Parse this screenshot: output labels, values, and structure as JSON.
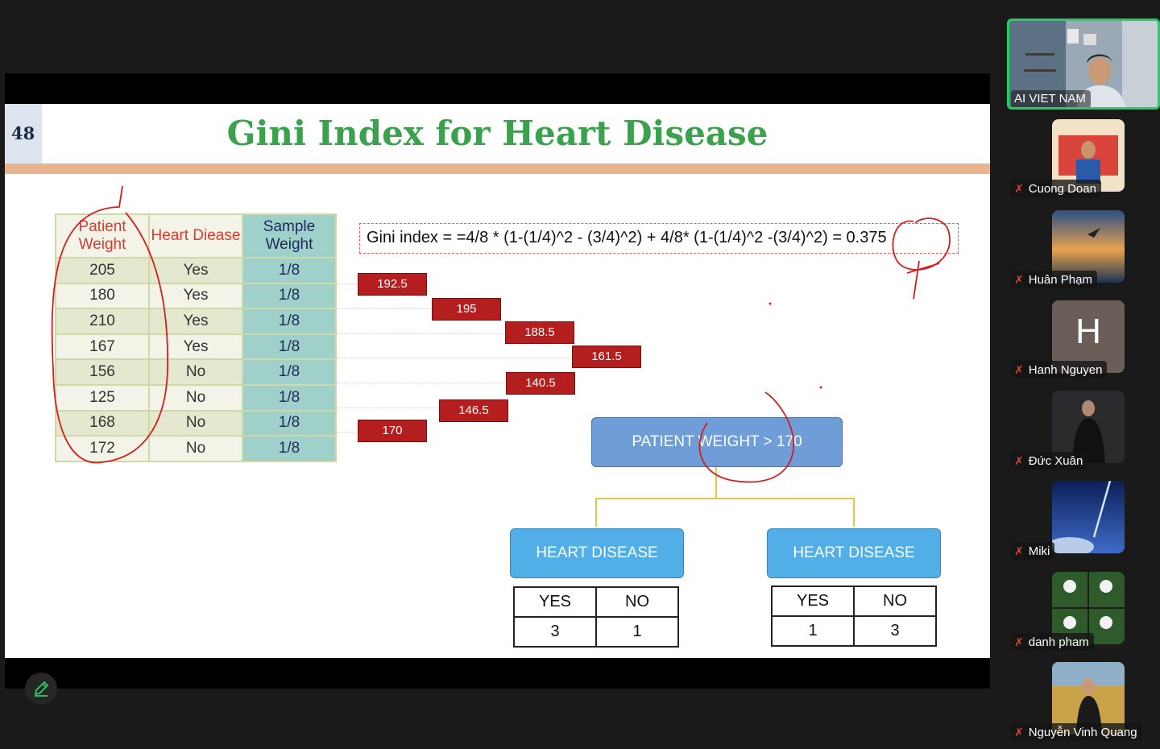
{
  "slide": {
    "number": "48",
    "title": "Gini Index for Heart Disease",
    "table": {
      "headers": [
        "Patient Weight",
        "Heart Diease",
        "Sample Weight"
      ],
      "rows": [
        [
          "205",
          "Yes",
          "1/8"
        ],
        [
          "180",
          "Yes",
          "1/8"
        ],
        [
          "210",
          "Yes",
          "1/8"
        ],
        [
          "167",
          "Yes",
          "1/8"
        ],
        [
          "156",
          "No",
          "1/8"
        ],
        [
          "125",
          "No",
          "1/8"
        ],
        [
          "168",
          "No",
          "1/8"
        ],
        [
          "172",
          "No",
          "1/8"
        ]
      ]
    },
    "formula": "Gini index = =4/8 * (1-(1/4)^2 - (3/4)^2) + 4/8* (1-(1/4)^2 -(3/4)^2) = 0.375",
    "midpoints": [
      "192.5",
      "195",
      "188.5",
      "161.5",
      "140.5",
      "146.5",
      "170"
    ],
    "tree": {
      "root": "PATIENT WEIGHT > 170",
      "left": {
        "label": "HEART DISEASE",
        "yes_label": "YES",
        "no_label": "NO",
        "yes": "3",
        "no": "1"
      },
      "right": {
        "label": "HEART DISEASE",
        "yes_label": "YES",
        "no_label": "NO",
        "yes": "1",
        "no": "3"
      }
    }
  },
  "participants": {
    "main": "AI VIET NAM",
    "list": [
      "Cuong Doan",
      "Huân Phạm",
      "Hanh Nguyen",
      "Đức Xuân",
      "Miki",
      "danh pham",
      "Nguyễn Vinh Quang"
    ],
    "avatar_letter": "H"
  },
  "colors": {
    "title_green": "#3aa24c",
    "value_red": "#b41e1e",
    "active_speaker": "#23d160"
  }
}
